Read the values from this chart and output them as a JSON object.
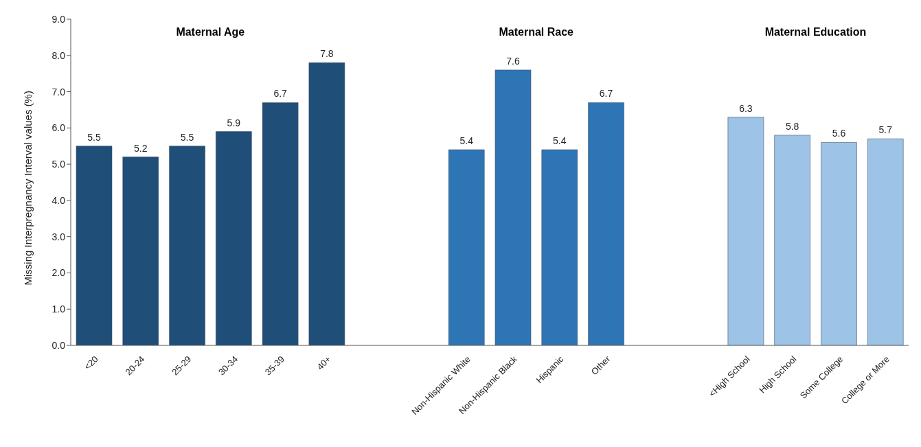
{
  "chart_data": {
    "type": "bar",
    "ylabel": "Missing Interpregnancy Interval values (%)",
    "annotations": [
      "Maternal Age",
      "Maternal Race",
      "Maternal Education"
    ],
    "categories": [
      "<20",
      "20-24",
      "25-29",
      "30-34",
      "35-39",
      "40+",
      null,
      null,
      "Non-Hispanic White",
      "Non-Hispanic Black",
      "Hispanic",
      "Other",
      null,
      null,
      "<High School",
      "High School",
      "Some College",
      "College or More"
    ],
    "values": [
      5.5,
      5.2,
      5.5,
      5.9,
      6.7,
      7.8,
      null,
      null,
      5.4,
      7.6,
      5.4,
      6.7,
      null,
      null,
      6.3,
      5.8,
      5.6,
      5.7
    ],
    "colors": [
      "#1f4e79",
      "#1f4e79",
      "#1f4e79",
      "#1f4e79",
      "#1f4e79",
      "#1f4e79",
      null,
      null,
      "#2e75b6",
      "#2e75b6",
      "#2e75b6",
      "#2e75b6",
      null,
      null,
      "#9dc3e6",
      "#9dc3e6",
      "#9dc3e6",
      "#9dc3e6"
    ],
    "data_labels": true,
    "ylim": [
      0,
      9
    ],
    "yticks": [
      {
        "value": 0,
        "label": "0.0"
      },
      {
        "value": 1,
        "label": "1.0"
      },
      {
        "value": 2,
        "label": "2.0"
      },
      {
        "value": 3,
        "label": "3.0"
      },
      {
        "value": 4,
        "label": "4.0"
      },
      {
        "value": 5,
        "label": "5.0"
      },
      {
        "value": 6,
        "label": "6.0"
      },
      {
        "value": 7,
        "label": "7.0"
      },
      {
        "value": 8,
        "label": "8.0"
      },
      {
        "value": 9,
        "label": "9.0"
      }
    ],
    "grid": false,
    "legend": false
  }
}
